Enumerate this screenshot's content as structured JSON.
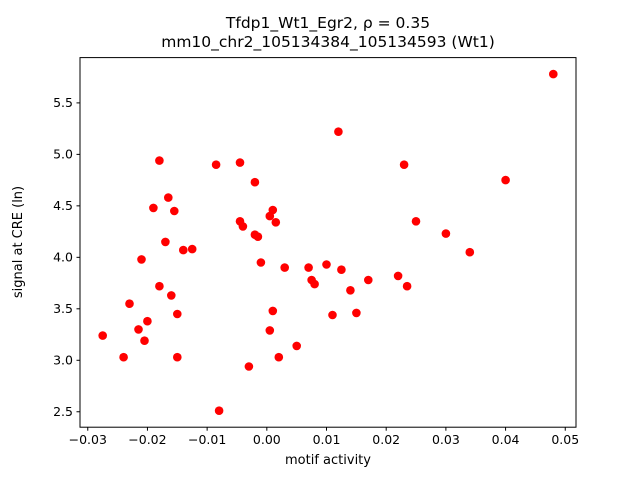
{
  "chart_data": {
    "type": "scatter",
    "title": "Tfdp1_Wt1_Egr2, ρ = 0.35",
    "subtitle": "mm10_chr2_105134384_105134593 (Wt1)",
    "xlabel": "motif activity",
    "ylabel": "signal at CRE (ln)",
    "xlim": [
      -0.0313,
      0.0518
    ],
    "ylim": [
      2.35,
      5.94
    ],
    "xticks": [
      -0.03,
      -0.02,
      -0.01,
      0.0,
      0.01,
      0.02,
      0.03,
      0.04,
      0.05
    ],
    "yticks": [
      2.5,
      3.0,
      3.5,
      4.0,
      4.5,
      5.0,
      5.5
    ],
    "marker_color": "#ff0000",
    "legend": "none",
    "grid": false,
    "points": [
      [
        -0.0275,
        3.24
      ],
      [
        -0.024,
        3.03
      ],
      [
        -0.023,
        3.55
      ],
      [
        -0.021,
        3.98
      ],
      [
        -0.0215,
        3.3
      ],
      [
        -0.02,
        3.38
      ],
      [
        -0.0205,
        3.19
      ],
      [
        -0.019,
        4.48
      ],
      [
        -0.018,
        4.94
      ],
      [
        -0.018,
        3.72
      ],
      [
        -0.017,
        4.15
      ],
      [
        -0.0165,
        4.58
      ],
      [
        -0.0155,
        4.45
      ],
      [
        -0.016,
        3.63
      ],
      [
        -0.015,
        3.45
      ],
      [
        -0.015,
        3.03
      ],
      [
        -0.014,
        4.07
      ],
      [
        -0.0125,
        4.08
      ],
      [
        -0.0085,
        4.9
      ],
      [
        -0.008,
        2.51
      ],
      [
        -0.0045,
        4.92
      ],
      [
        -0.0045,
        4.35
      ],
      [
        -0.004,
        4.3
      ],
      [
        -0.003,
        2.94
      ],
      [
        -0.002,
        4.73
      ],
      [
        -0.002,
        4.22
      ],
      [
        -0.0015,
        4.2
      ],
      [
        -0.001,
        3.95
      ],
      [
        0.0005,
        4.4
      ],
      [
        0.001,
        4.46
      ],
      [
        0.0015,
        4.34
      ],
      [
        0.001,
        3.48
      ],
      [
        0.0005,
        3.29
      ],
      [
        0.002,
        3.03
      ],
      [
        0.003,
        3.9
      ],
      [
        0.005,
        3.14
      ],
      [
        0.007,
        3.9
      ],
      [
        0.0075,
        3.78
      ],
      [
        0.008,
        3.74
      ],
      [
        0.01,
        3.93
      ],
      [
        0.011,
        3.44
      ],
      [
        0.012,
        5.22
      ],
      [
        0.0125,
        3.88
      ],
      [
        0.014,
        3.68
      ],
      [
        0.015,
        3.46
      ],
      [
        0.017,
        3.78
      ],
      [
        0.022,
        3.82
      ],
      [
        0.023,
        4.9
      ],
      [
        0.0235,
        3.72
      ],
      [
        0.025,
        4.35
      ],
      [
        0.03,
        4.23
      ],
      [
        0.034,
        4.05
      ],
      [
        0.04,
        4.75
      ],
      [
        0.048,
        5.78
      ]
    ]
  }
}
